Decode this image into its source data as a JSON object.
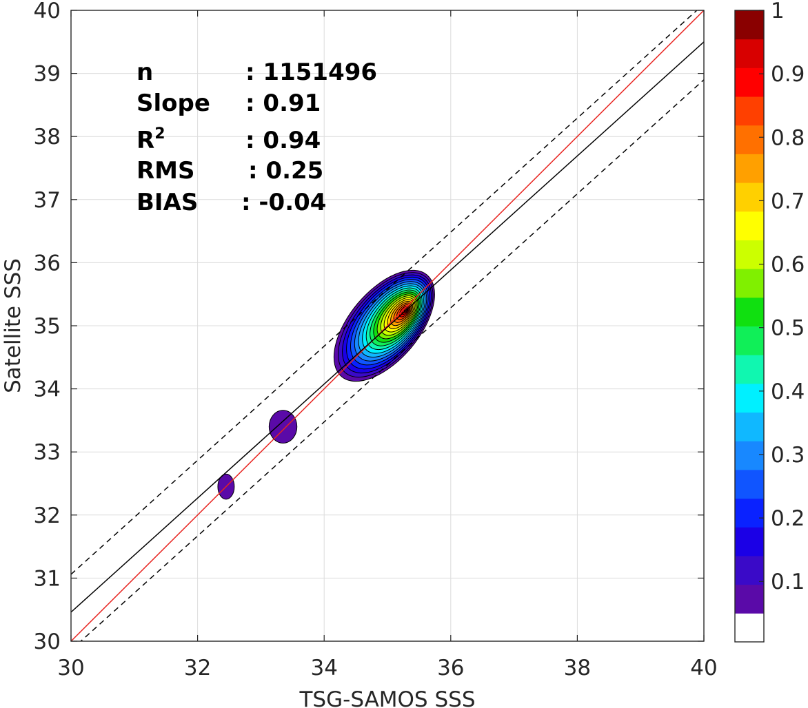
{
  "chart_data": {
    "type": "contour-density",
    "xlabel": "TSG-SAMOS SSS",
    "ylabel": "Satellite SSS",
    "xlim": [
      30,
      40
    ],
    "ylim": [
      30,
      40
    ],
    "xticks": [
      "30",
      "32",
      "34",
      "36",
      "38",
      "40"
    ],
    "yticks": [
      "30",
      "31",
      "32",
      "33",
      "34",
      "35",
      "36",
      "37",
      "38",
      "39",
      "40"
    ],
    "grid": true,
    "stats": [
      {
        "label": "n",
        "value": ": 1151496"
      },
      {
        "label": "Slope",
        "value": ": 0.91"
      },
      {
        "label": "R2",
        "value": ": 0.94"
      },
      {
        "label": "RMS",
        "value": ": 0.25"
      },
      {
        "label": "BIAS",
        "value": ": -0.04"
      }
    ],
    "lines": [
      {
        "style": "red-solid",
        "color": "#e8231f",
        "x": [
          30,
          40
        ],
        "y": [
          30,
          40
        ]
      },
      {
        "style": "black-solid",
        "color": "#000000",
        "x": [
          30,
          40
        ],
        "y": [
          30.46,
          39.5
        ]
      },
      {
        "style": "black-dashed",
        "color": "#000000",
        "x": [
          30,
          40
        ],
        "y": [
          31.06,
          40.1
        ]
      },
      {
        "style": "black-dashed",
        "color": "#000000",
        "x": [
          30,
          40
        ],
        "y": [
          29.86,
          38.9
        ]
      }
    ],
    "density_peak": {
      "x": 35.3,
      "y": 35.25
    },
    "blobs": [
      {
        "x": 34.95,
        "y": 35.0,
        "rx": 1.05,
        "ry": 0.55,
        "rotate": -50,
        "level": 0.1
      },
      {
        "x": 33.35,
        "y": 33.4,
        "rx": 0.22,
        "ry": 0.26,
        "rotate": 0,
        "level": 0.1
      },
      {
        "x": 32.45,
        "y": 32.45,
        "rx": 0.13,
        "ry": 0.2,
        "rotate": 0,
        "level": 0.1
      }
    ],
    "colorbar": {
      "ticks": [
        "0.1",
        "0.2",
        "0.3",
        "0.4",
        "0.5",
        "0.6",
        "0.7",
        "0.8",
        "0.9",
        "1"
      ],
      "colors": [
        "#ffffff",
        "#5a0aa8",
        "#3a0ac8",
        "#1b00e6",
        "#0a22ff",
        "#1055ff",
        "#1888ff",
        "#10b8ff",
        "#00f0ff",
        "#10f7b0",
        "#10ef58",
        "#10e010",
        "#80f000",
        "#ccff00",
        "#ffff00",
        "#ffd000",
        "#ffa000",
        "#ff7000",
        "#ff4000",
        "#ff0000",
        "#d80000",
        "#8a0000"
      ]
    }
  }
}
